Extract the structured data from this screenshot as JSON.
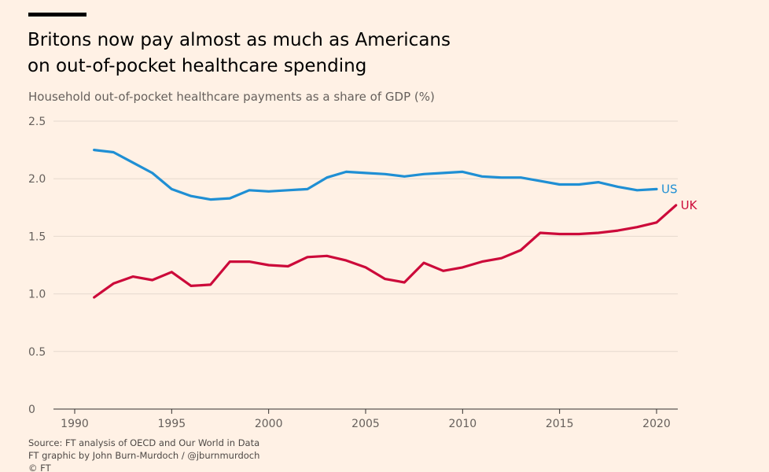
{
  "header": {
    "title_line1": "Britons now pay almost as much as Americans",
    "title_line2": "on out-of-pocket healthcare spending",
    "subtitle": "Household out-of-pocket healthcare payments as a share of GDP (%)"
  },
  "footer": {
    "source": "Source: FT analysis of OECD and Our World in Data",
    "credit": "FT graphic by John Burn-Murdoch / @jburnmurdoch",
    "copyright": "© FT"
  },
  "colors": {
    "background": "#fff1e5",
    "us": "#1f8fd4",
    "uk": "#cc0a3a",
    "grid": "#e6d9ce"
  },
  "chart_data": {
    "type": "line",
    "title": "Britons now pay almost as much as Americans on out-of-pocket healthcare spending",
    "subtitle": "Household out-of-pocket healthcare payments as a share of GDP (%)",
    "xlabel": "",
    "ylabel": "",
    "xlim": [
      1990,
      2020
    ],
    "ylim": [
      0,
      2.5
    ],
    "x_ticks": [
      1990,
      1995,
      2000,
      2005,
      2010,
      2015,
      2020
    ],
    "y_ticks": [
      0,
      0.5,
      1.0,
      1.5,
      2.0,
      2.5
    ],
    "y_tick_labels": [
      "0",
      "0.5",
      "1.0",
      "1.5",
      "2.0",
      "2.5"
    ],
    "grid": true,
    "legend": "direct labels at line ends",
    "series": [
      {
        "name": "US",
        "x": [
          1991,
          1992,
          1993,
          1994,
          1995,
          1996,
          1997,
          1998,
          1999,
          2000,
          2001,
          2002,
          2003,
          2004,
          2005,
          2006,
          2007,
          2008,
          2009,
          2010,
          2011,
          2012,
          2013,
          2014,
          2015,
          2016,
          2017,
          2018,
          2019,
          2020
        ],
        "values": [
          2.25,
          2.23,
          2.14,
          2.05,
          1.91,
          1.85,
          1.82,
          1.83,
          1.9,
          1.89,
          1.9,
          1.91,
          2.01,
          2.06,
          2.05,
          2.04,
          2.02,
          2.04,
          2.05,
          2.06,
          2.02,
          2.01,
          2.01,
          1.98,
          1.95,
          1.95,
          1.97,
          1.93,
          1.9,
          1.91
        ]
      },
      {
        "name": "UK",
        "x": [
          1991,
          1992,
          1993,
          1994,
          1995,
          1996,
          1997,
          1998,
          1999,
          2000,
          2001,
          2002,
          2003,
          2004,
          2005,
          2006,
          2007,
          2008,
          2009,
          2010,
          2011,
          2012,
          2013,
          2014,
          2015,
          2016,
          2017,
          2018,
          2019,
          2020,
          2021
        ],
        "values": [
          0.97,
          1.09,
          1.15,
          1.12,
          1.19,
          1.07,
          1.08,
          1.28,
          1.28,
          1.25,
          1.24,
          1.32,
          1.33,
          1.29,
          1.23,
          1.13,
          1.1,
          1.27,
          1.2,
          1.23,
          1.28,
          1.31,
          1.38,
          1.53,
          1.52,
          1.52,
          1.53,
          1.55,
          1.58,
          1.62,
          1.77
        ]
      }
    ]
  }
}
